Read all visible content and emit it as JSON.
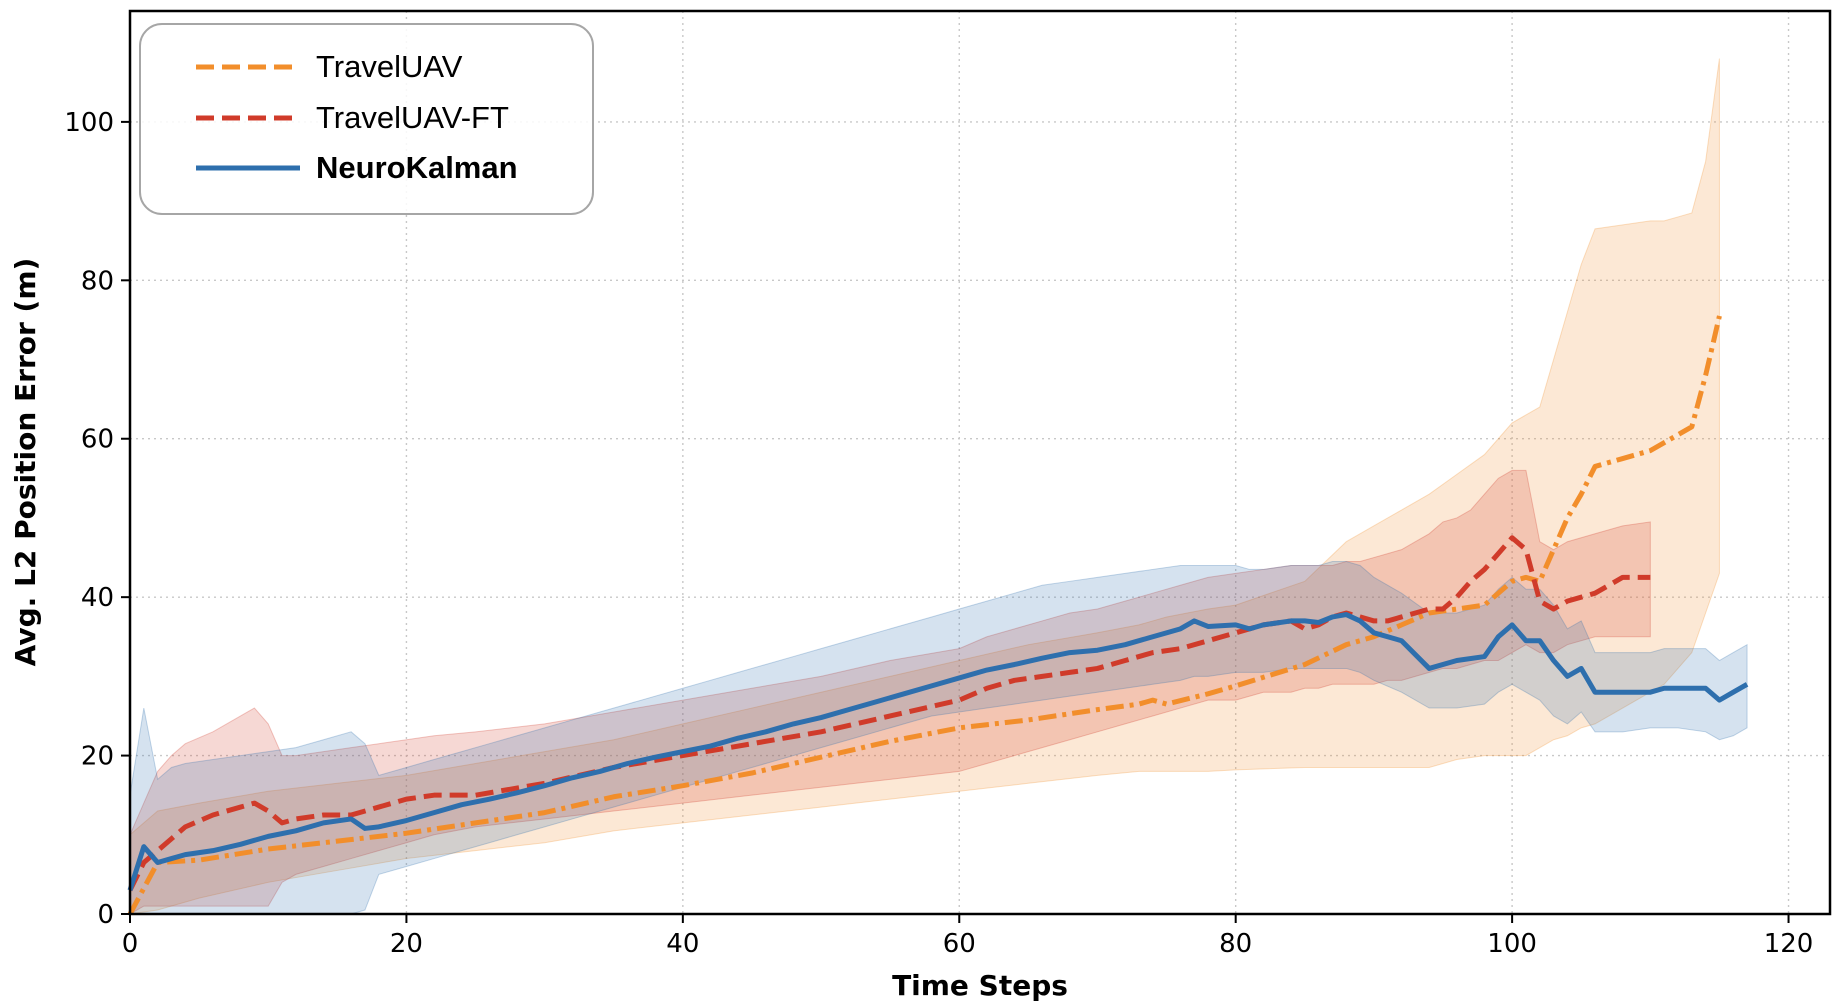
{
  "chart_data": {
    "type": "line",
    "title": "",
    "xlabel": "Time Steps",
    "ylabel": "Avg. L2 Position Error (m)",
    "xlim": [
      0,
      123
    ],
    "ylim": [
      0,
      114
    ],
    "xticks": [
      0,
      20,
      40,
      60,
      80,
      100,
      120
    ],
    "yticks": [
      0,
      20,
      40,
      60,
      80,
      100
    ],
    "grid": true,
    "legend_position": "top-left",
    "series": [
      {
        "name": "TravelUAV",
        "color": "#f28e2b",
        "style": "dash-dot",
        "x": [
          0,
          2,
          5,
          10,
          15,
          20,
          25,
          30,
          35,
          40,
          45,
          50,
          55,
          60,
          65,
          70,
          73,
          74,
          75,
          78,
          80,
          85,
          88,
          90,
          92,
          94,
          96,
          98,
          100,
          101,
          102,
          103,
          104,
          105,
          106,
          108,
          110,
          111,
          112,
          113,
          114,
          115
        ],
        "y": [
          0,
          6.5,
          6.8,
          8.2,
          9.2,
          10.2,
          11.5,
          12.8,
          14.8,
          16.2,
          17.8,
          19.8,
          21.8,
          23.5,
          24.5,
          25.8,
          26.5,
          27.0,
          26.5,
          27.8,
          28.8,
          31.5,
          34.0,
          35.0,
          36.5,
          38.0,
          38.5,
          39.0,
          42.0,
          42.5,
          42.0,
          46.0,
          50.0,
          53.0,
          56.5,
          57.5,
          58.5,
          59.5,
          60.5,
          61.5,
          68.0,
          75.5
        ],
        "band_low": [
          0,
          0.5,
          2,
          4,
          5.5,
          7,
          8,
          9,
          10.5,
          11.5,
          12.5,
          13.5,
          14.5,
          15.5,
          16.5,
          17.5,
          18,
          18,
          18,
          18,
          18.2,
          18.5,
          18.5,
          18.5,
          18.5,
          18.5,
          19.5,
          20,
          20,
          20,
          21,
          22,
          22.5,
          23.5,
          24,
          26,
          28,
          29,
          31,
          33,
          38,
          43
        ],
        "band_high": [
          10,
          13,
          14,
          15.5,
          16.5,
          17.5,
          19,
          20.5,
          22,
          24,
          26,
          28,
          30,
          32,
          34,
          35.5,
          36.5,
          37,
          37.5,
          38.5,
          39,
          42,
          47,
          49,
          51,
          53,
          55.5,
          58,
          62,
          63,
          64,
          70,
          76,
          82,
          86.5,
          87,
          87.5,
          87.5,
          88,
          88.5,
          95,
          108
        ]
      },
      {
        "name": "TravelUAV-FT",
        "color": "#d03b2a",
        "style": "dashed",
        "x": [
          0,
          1,
          2,
          3,
          4,
          6,
          8,
          9,
          10,
          11,
          12,
          14,
          16,
          18,
          20,
          22,
          25,
          30,
          35,
          40,
          45,
          50,
          55,
          60,
          62,
          64,
          66,
          68,
          70,
          72,
          74,
          76,
          78,
          80,
          82,
          84,
          85,
          86,
          87,
          88,
          89,
          90,
          91,
          92,
          93,
          94,
          95,
          96,
          97,
          98,
          99,
          100,
          101,
          102,
          103,
          104,
          106,
          108,
          110
        ],
        "y": [
          3,
          6.5,
          8.0,
          9.5,
          11.0,
          12.5,
          13.5,
          14.0,
          13.0,
          11.5,
          12.0,
          12.5,
          12.5,
          13.5,
          14.5,
          15.0,
          15.0,
          16.5,
          18.5,
          20.0,
          21.5,
          23.0,
          25.0,
          27.0,
          28.5,
          29.5,
          30.0,
          30.5,
          31.0,
          32.0,
          33.0,
          33.5,
          34.5,
          35.5,
          36.5,
          37.0,
          36.0,
          36.5,
          37.5,
          38.0,
          37.5,
          37.0,
          37.0,
          37.5,
          38.0,
          38.5,
          38.5,
          40.0,
          42.0,
          43.5,
          45.5,
          47.5,
          46.0,
          39.5,
          38.5,
          39.5,
          40.5,
          42.5,
          42.5
        ],
        "band_low": [
          0,
          1,
          1,
          1,
          1,
          1,
          1,
          1,
          1,
          4,
          5,
          6,
          7,
          8,
          9,
          10,
          11,
          12,
          13,
          14,
          15,
          16,
          17,
          18,
          19,
          20,
          21,
          22,
          23,
          24,
          25,
          26,
          27,
          27,
          28,
          28,
          28.5,
          28.5,
          29,
          29,
          29,
          29,
          29.5,
          29.5,
          30,
          30.5,
          31,
          31,
          31.5,
          32,
          32,
          33,
          34,
          33,
          33,
          34,
          35,
          35,
          35
        ],
        "band_high": [
          10,
          14,
          18,
          20,
          21.5,
          23,
          25,
          26,
          24,
          20,
          20,
          20.5,
          21,
          21.5,
          22,
          22.5,
          23,
          24,
          25.5,
          27,
          28.5,
          30,
          32,
          33.5,
          35,
          36,
          37,
          38,
          38.5,
          39.5,
          40.5,
          41.5,
          42.5,
          43,
          43.5,
          44,
          44,
          44,
          44,
          44.5,
          44.5,
          45,
          45.5,
          46,
          47,
          48,
          49.5,
          50,
          51,
          53,
          55,
          56,
          56,
          47,
          46,
          47,
          48,
          49,
          49.5
        ]
      },
      {
        "name": "NeuroKalman",
        "color": "#2e6fad",
        "style": "solid",
        "x": [
          0,
          1,
          2,
          3,
          4,
          6,
          8,
          10,
          12,
          14,
          16,
          17,
          18,
          20,
          22,
          24,
          26,
          28,
          30,
          32,
          34,
          36,
          38,
          40,
          42,
          44,
          46,
          48,
          50,
          52,
          54,
          56,
          58,
          60,
          62,
          64,
          66,
          68,
          70,
          72,
          74,
          76,
          77,
          78,
          80,
          81,
          82,
          84,
          85,
          86,
          87,
          88,
          89,
          90,
          92,
          94,
          96,
          98,
          99,
          100,
          101,
          102,
          103,
          104,
          105,
          106,
          108,
          110,
          111,
          112,
          114,
          115,
          116,
          117
        ],
        "y": [
          3,
          8.5,
          6.5,
          7.0,
          7.5,
          8.0,
          8.8,
          9.8,
          10.5,
          11.5,
          12.0,
          10.8,
          11.0,
          11.8,
          12.8,
          13.8,
          14.5,
          15.3,
          16.2,
          17.2,
          18.0,
          19.0,
          19.8,
          20.5,
          21.2,
          22.2,
          23.0,
          24.0,
          24.8,
          25.8,
          26.8,
          27.8,
          28.8,
          29.8,
          30.8,
          31.5,
          32.3,
          33.0,
          33.3,
          34.0,
          35.0,
          36.0,
          37.0,
          36.3,
          36.5,
          36.0,
          36.5,
          37.0,
          37.0,
          36.8,
          37.5,
          37.8,
          37.0,
          35.5,
          34.5,
          31.0,
          32.0,
          32.5,
          35.0,
          36.5,
          34.5,
          34.5,
          32.0,
          30.0,
          31.0,
          28.0,
          28.0,
          28.0,
          28.5,
          28.5,
          28.5,
          27.0,
          28.0,
          29.0
        ],
        "band_low": [
          0,
          0,
          0,
          0,
          0,
          0,
          0,
          0,
          0,
          0,
          0,
          0.5,
          5,
          6,
          7,
          8,
          9,
          10,
          11,
          12,
          13,
          14,
          15,
          16,
          17,
          18,
          19,
          20,
          21,
          22,
          23,
          24,
          25,
          25.5,
          26,
          26.5,
          27,
          27.5,
          28,
          28.5,
          29,
          29.5,
          30,
          30,
          30.5,
          30.5,
          30.5,
          31,
          31,
          31,
          31,
          31,
          30.5,
          29.5,
          28,
          26,
          26,
          26.5,
          28,
          29,
          28,
          27,
          25,
          24,
          25.5,
          23,
          23,
          23.5,
          23.5,
          23.5,
          23,
          22,
          22.5,
          23.5
        ],
        "band_high": [
          15,
          26,
          17,
          18.5,
          19,
          19.5,
          20,
          20.5,
          21,
          22,
          23,
          21.5,
          17.5,
          18.5,
          19.5,
          20.5,
          21.5,
          22.5,
          23.5,
          24.5,
          25.5,
          26.5,
          27.5,
          28.5,
          29.5,
          30.5,
          31.5,
          32.5,
          33.5,
          34.5,
          35.5,
          36.5,
          37.5,
          38.5,
          39.5,
          40.5,
          41.5,
          42,
          42.5,
          43,
          43.5,
          44,
          44,
          44,
          44,
          43.5,
          43.5,
          44,
          44,
          44,
          44.5,
          44.5,
          44,
          42.5,
          40.5,
          38,
          38,
          39,
          41,
          42.5,
          41,
          41,
          39,
          36,
          37,
          33,
          33,
          33,
          33.5,
          33.5,
          33.5,
          32,
          33,
          34
        ]
      }
    ]
  }
}
